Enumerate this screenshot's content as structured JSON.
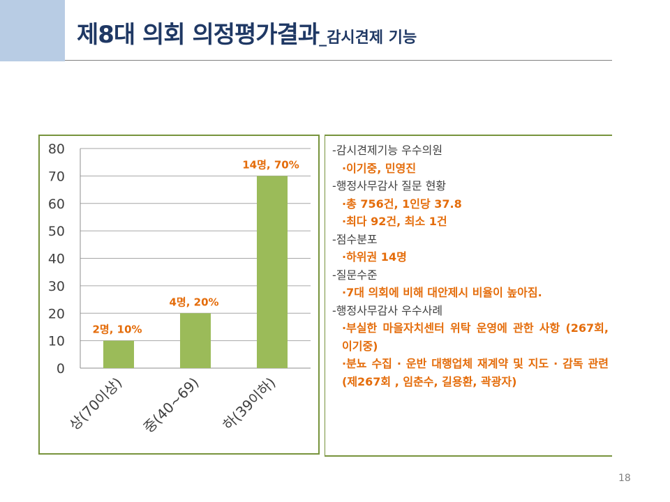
{
  "slide": {
    "title_main": "제8대 의회 의정평가결과",
    "title_sub": "_감시견제 기능",
    "page_number": "18"
  },
  "chart_data": {
    "type": "bar",
    "categories": [
      "상(70이상)",
      "중(40~69)",
      "하(39이하)"
    ],
    "values": [
      10,
      20,
      70
    ],
    "data_labels": [
      "2명, 10%",
      "4명, 20%",
      "14명, 70%"
    ],
    "ylim": [
      0,
      80
    ],
    "yticks": [
      0,
      10,
      20,
      30,
      40,
      50,
      60,
      70,
      80
    ],
    "grid": true,
    "bar_color": "#9bbb59",
    "label_color": "#e46c0a"
  },
  "summary": [
    {
      "type": "heading",
      "text": "-감시견제기능 우수의원"
    },
    {
      "type": "item",
      "text": "·이기중, 민영진"
    },
    {
      "type": "heading",
      "text": "-행정사무감사 질문 현황"
    },
    {
      "type": "item",
      "text": "·총 756건, 1인당 37.8"
    },
    {
      "type": "item",
      "text": "·최다 92건, 최소 1건"
    },
    {
      "type": "heading",
      "text": "-점수분포"
    },
    {
      "type": "item",
      "text": "·하위권 14명"
    },
    {
      "type": "heading",
      "text": "-질문수준"
    },
    {
      "type": "item",
      "text": "·7대 의회에 비해 대안제시 비율이 높아짐."
    },
    {
      "type": "heading",
      "text": "-행정사무감사 우수사례"
    },
    {
      "type": "item",
      "text": "·부실한 마을자치센터 위탁 운영에 관한 사항 (267회, 이기중)"
    },
    {
      "type": "item",
      "text": "·분뇨 수집 · 운반 대행업체 재계약 및 지도 · 감독 관련 (제267회 , 임춘수, 길용환, 곽광자)"
    }
  ]
}
